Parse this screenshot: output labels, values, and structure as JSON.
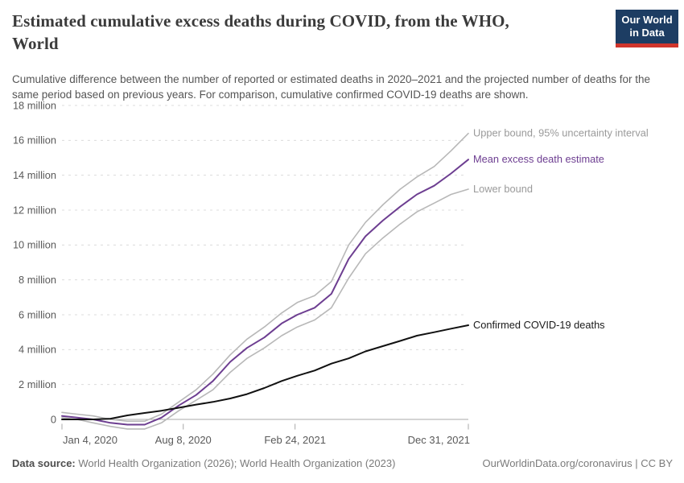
{
  "header": {
    "title": "Estimated cumulative excess deaths during COVID, from the WHO, World",
    "title_lines": [
      "Estimated cumulative excess deaths during COVID, from the WHO,",
      "World"
    ],
    "subtitle": "Cumulative difference between the number of reported or estimated deaths in 2020–2021 and the projected number of deaths for the same period based on previous years. For comparison, cumulative confirmed COVID-19 deaths are shown.",
    "logo": {
      "line1": "Our World",
      "line2": "in Data"
    }
  },
  "footer": {
    "datasource_label": "Data source:",
    "datasource_value": " World Health Organization (2026); World Health Organization (2023)",
    "link": "OurWorldinData.org/coronavirus | CC BY"
  },
  "colors": {
    "background": "#ffffff",
    "title": "#3b3b3b",
    "subtitle": "#555555",
    "axis_text": "#595959",
    "gridline": "#dcdcdc",
    "zero_line": "#a8a8a8",
    "tick_mark": "#a8a8a8",
    "bound_line": "#b8b8b8",
    "bound_label": "#9a9a9a",
    "mean_line": "#6d3e91",
    "confirmed_line": "#111111",
    "logo_navy": "#1d3d63",
    "logo_red": "#d0352c"
  },
  "chart_data": {
    "type": "line",
    "title": "Estimated cumulative excess deaths during COVID, from the WHO, World",
    "unit": "million deaths",
    "grid": "dashed horizontal",
    "legend_position": "end-of-line labels, right side",
    "ylim": [
      -0.6,
      18
    ],
    "x_range": [
      "Jan 4, 2020",
      "Dec 31, 2021"
    ],
    "x": [
      "Jan 4, 2020",
      "Jan 31, 2020",
      "Feb 29, 2020",
      "Mar 31, 2020",
      "Apr 30, 2020",
      "May 31, 2020",
      "Jun 30, 2020",
      "Jul 31, 2020",
      "Aug 31, 2020",
      "Sep 30, 2020",
      "Oct 31, 2020",
      "Nov 30, 2020",
      "Dec 31, 2020",
      "Jan 31, 2021",
      "Feb 28, 2021",
      "Mar 31, 2021",
      "Apr 30, 2021",
      "May 31, 2021",
      "Jun 30, 2021",
      "Jul 31, 2021",
      "Aug 31, 2021",
      "Sep 30, 2021",
      "Oct 31, 2021",
      "Nov 30, 2021",
      "Dec 31, 2021"
    ],
    "x_days": [
      0,
      27,
      56,
      87,
      117,
      148,
      178,
      209,
      240,
      270,
      301,
      331,
      362,
      393,
      421,
      452,
      482,
      513,
      543,
      574,
      605,
      635,
      666,
      696,
      727
    ],
    "series": [
      {
        "name": "Upper bound, 95% uncertainty interval",
        "color": "#b8b8b8",
        "label_color": "#9a9a9a",
        "width": 1.6,
        "values": [
          0.4,
          0.3,
          0.2,
          0.0,
          -0.1,
          -0.1,
          0.3,
          1.0,
          1.7,
          2.6,
          3.7,
          4.6,
          5.3,
          6.1,
          6.7,
          7.1,
          7.9,
          10.0,
          11.3,
          12.3,
          13.2,
          13.9,
          14.5,
          15.4,
          16.4
        ]
      },
      {
        "name": "Mean excess death estimate",
        "color": "#6d3e91",
        "label_color": "#6d3e91",
        "width": 2,
        "values": [
          0.2,
          0.1,
          0.0,
          -0.2,
          -0.3,
          -0.3,
          0.1,
          0.8,
          1.4,
          2.2,
          3.3,
          4.1,
          4.7,
          5.5,
          6.0,
          6.4,
          7.2,
          9.2,
          10.5,
          11.4,
          12.2,
          12.9,
          13.4,
          14.1,
          14.9
        ]
      },
      {
        "name": "Lower bound",
        "color": "#b8b8b8",
        "label_color": "#9a9a9a",
        "width": 1.6,
        "values": [
          0.1,
          0.0,
          -0.2,
          -0.4,
          -0.55,
          -0.55,
          -0.2,
          0.5,
          1.1,
          1.7,
          2.7,
          3.5,
          4.1,
          4.8,
          5.3,
          5.7,
          6.4,
          8.1,
          9.5,
          10.4,
          11.2,
          11.9,
          12.4,
          12.9,
          13.2
        ]
      },
      {
        "name": "Confirmed COVID-19 deaths",
        "color": "#111111",
        "label_color": "#1a1a1a",
        "width": 2,
        "values": [
          0.0,
          0.0,
          0.0,
          0.04,
          0.23,
          0.37,
          0.5,
          0.67,
          0.85,
          1.0,
          1.2,
          1.45,
          1.8,
          2.2,
          2.5,
          2.8,
          3.2,
          3.5,
          3.9,
          4.2,
          4.5,
          4.8,
          5.0,
          5.2,
          5.4
        ]
      }
    ],
    "yticks": [
      {
        "value": 0,
        "label": "0"
      },
      {
        "value": 2,
        "label": "2 million"
      },
      {
        "value": 4,
        "label": "4 million"
      },
      {
        "value": 6,
        "label": "6 million"
      },
      {
        "value": 8,
        "label": "8 million"
      },
      {
        "value": 10,
        "label": "10 million"
      },
      {
        "value": 12,
        "label": "12 million"
      },
      {
        "value": 14,
        "label": "14 million"
      },
      {
        "value": 16,
        "label": "16 million"
      },
      {
        "value": 18,
        "label": "18 million"
      }
    ],
    "xticks": [
      {
        "label": "Jan 4, 2020",
        "day": 0,
        "align": "start"
      },
      {
        "label": "Aug 8, 2020",
        "day": 217,
        "align": "middle"
      },
      {
        "label": "Feb 24, 2021",
        "day": 417,
        "align": "middle"
      },
      {
        "label": "Dec 31, 2021",
        "day": 727,
        "align": "end"
      }
    ]
  }
}
